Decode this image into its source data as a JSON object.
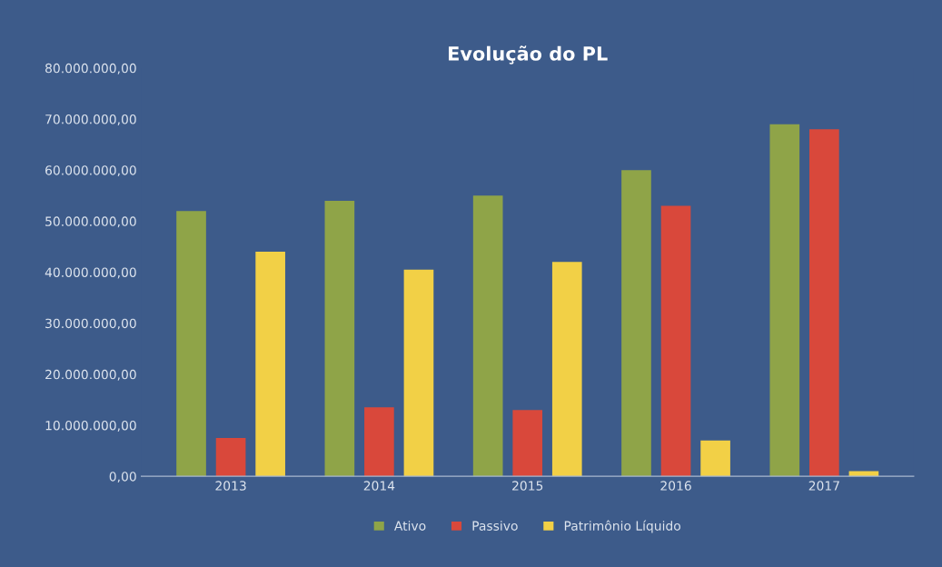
{
  "chart_data": {
    "type": "bar",
    "title": "Evolução do PL",
    "categories": [
      "2013",
      "2014",
      "2015",
      "2016",
      "2017"
    ],
    "series": [
      {
        "name": "Ativo",
        "color": "#8fa448",
        "values": [
          52000000,
          54000000,
          55000000,
          60000000,
          69000000
        ]
      },
      {
        "name": "Passivo",
        "color": "#d9483b",
        "values": [
          7500000,
          13500000,
          13000000,
          53000000,
          68000000
        ]
      },
      {
        "name": "Patrimônio Líquido",
        "color": "#f2d046",
        "values": [
          44000000,
          40500000,
          42000000,
          7000000,
          1000000
        ]
      }
    ],
    "ylim": [
      0,
      80000000
    ],
    "yticks": [
      {
        "value": 0,
        "label": "0,00"
      },
      {
        "value": 10000000,
        "label": "10.000.000,00"
      },
      {
        "value": 20000000,
        "label": "20.000.000,00"
      },
      {
        "value": 30000000,
        "label": "30.000.000,00"
      },
      {
        "value": 40000000,
        "label": "40.000.000,00"
      },
      {
        "value": 50000000,
        "label": "50.000.000,00"
      },
      {
        "value": 60000000,
        "label": "60.000.000,00"
      },
      {
        "value": 70000000,
        "label": "70.000.000,00"
      },
      {
        "value": 80000000,
        "label": "80.000.000,00"
      }
    ],
    "grid": false,
    "legend": "bottom"
  }
}
